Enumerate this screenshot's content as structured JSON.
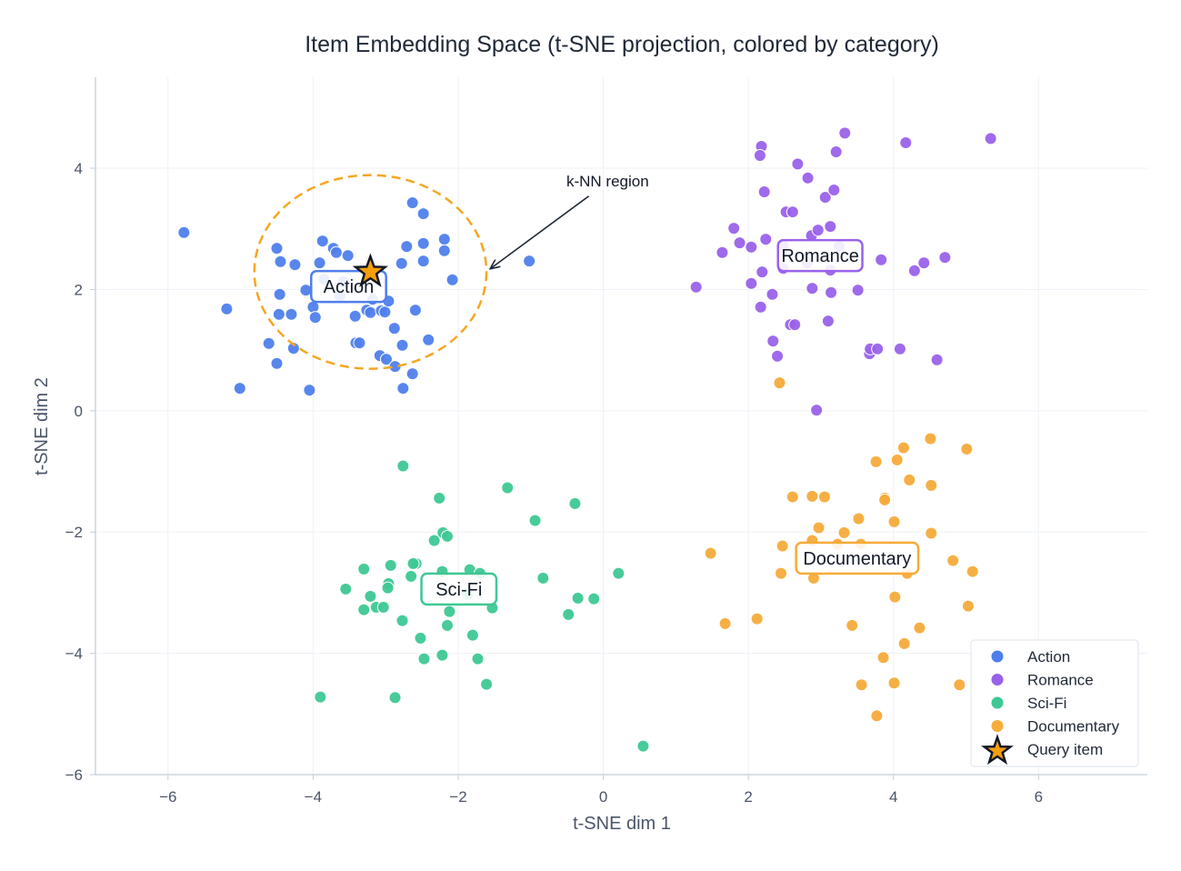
{
  "chart_data": {
    "type": "scatter",
    "title": "Item Embedding Space (t-SNE projection, colored by category)",
    "xlabel": "t-SNE dim 1",
    "ylabel": "t-SNE dim 2",
    "xlim": [
      -7,
      7.5
    ],
    "ylim": [
      -6,
      5.5
    ],
    "xticks": [
      -6,
      -4,
      -2,
      0,
      2,
      4,
      6
    ],
    "yticks": [
      -6,
      -4,
      -2,
      0,
      2,
      4
    ],
    "xtick_labels": [
      "−6",
      "−4",
      "−2",
      "0",
      "2",
      "4",
      "6"
    ],
    "ytick_labels": [
      "−6",
      "−4",
      "−2",
      "0",
      "2",
      "4"
    ],
    "grid": true,
    "legend_position": "bottom-right",
    "series": [
      {
        "name": "Action",
        "color": "#4f7fec",
        "label_text": "Action",
        "label_at": [
          -3.51,
          2.05
        ],
        "points": [
          [
            -5.78,
            2.94
          ],
          [
            -5.19,
            1.68
          ],
          [
            -5.01,
            0.37
          ],
          [
            -4.5,
            2.68
          ],
          [
            -4.45,
            2.46
          ],
          [
            -4.25,
            2.41
          ],
          [
            -4.46,
            1.92
          ],
          [
            -4.47,
            1.59
          ],
          [
            -4.3,
            1.59
          ],
          [
            -4.61,
            1.11
          ],
          [
            -4.27,
            1.03
          ],
          [
            -4.5,
            0.78
          ],
          [
            -4.05,
            0.34
          ],
          [
            -4.1,
            1.99
          ],
          [
            -4.0,
            1.71
          ],
          [
            -3.97,
            1.54
          ],
          [
            -3.91,
            2.44
          ],
          [
            -3.87,
            2.8
          ],
          [
            -3.72,
            2.68
          ],
          [
            -3.68,
            2.61
          ],
          [
            -3.52,
            2.56
          ],
          [
            -3.42,
            1.56
          ],
          [
            -3.41,
            1.12
          ],
          [
            -3.36,
            1.12
          ],
          [
            -3.26,
            1.66
          ],
          [
            -3.21,
            1.62
          ],
          [
            -3.06,
            1.65
          ],
          [
            -3.01,
            1.63
          ],
          [
            -2.96,
            1.81
          ],
          [
            -2.88,
            1.36
          ],
          [
            -3.08,
            0.91
          ],
          [
            -2.99,
            0.85
          ],
          [
            -2.87,
            0.73
          ],
          [
            -2.77,
            1.08
          ],
          [
            -2.76,
            0.37
          ],
          [
            -2.63,
            0.61
          ],
          [
            -2.78,
            2.43
          ],
          [
            -2.71,
            2.71
          ],
          [
            -2.63,
            3.43
          ],
          [
            -2.59,
            1.66
          ],
          [
            -2.48,
            3.25
          ],
          [
            -2.48,
            2.47
          ],
          [
            -2.48,
            2.76
          ],
          [
            -2.41,
            1.17
          ],
          [
            -2.19,
            2.83
          ],
          [
            -2.19,
            2.64
          ],
          [
            -2.08,
            2.16
          ],
          [
            -1.02,
            2.47
          ],
          [
            -3.85,
            2.17
          ],
          [
            -3.58,
            2.13
          ],
          [
            -3.63,
            1.89
          ],
          [
            -3.18,
            1.84
          ]
        ]
      },
      {
        "name": "Romance",
        "color": "#9a62ea",
        "label_text": "Romance",
        "label_at": [
          2.99,
          2.56
        ],
        "points": [
          [
            1.28,
            2.04
          ],
          [
            1.64,
            2.61
          ],
          [
            1.8,
            3.01
          ],
          [
            1.88,
            2.77
          ],
          [
            2.04,
            2.7
          ],
          [
            2.04,
            2.1
          ],
          [
            2.17,
            1.71
          ],
          [
            2.18,
            4.36
          ],
          [
            2.16,
            4.21
          ],
          [
            2.22,
            3.61
          ],
          [
            2.19,
            2.29
          ],
          [
            2.24,
            2.83
          ],
          [
            2.33,
            1.92
          ],
          [
            2.34,
            1.15
          ],
          [
            2.4,
            0.9
          ],
          [
            2.48,
            2.73
          ],
          [
            2.52,
            3.28
          ],
          [
            2.61,
            3.28
          ],
          [
            2.58,
            1.42
          ],
          [
            2.64,
            1.42
          ],
          [
            2.68,
            4.07
          ],
          [
            2.82,
            3.84
          ],
          [
            2.87,
            2.89
          ],
          [
            2.88,
            2.02
          ],
          [
            2.96,
            2.98
          ],
          [
            3.06,
            3.52
          ],
          [
            3.1,
            1.48
          ],
          [
            3.13,
            3.04
          ],
          [
            3.14,
            1.95
          ],
          [
            3.18,
            3.64
          ],
          [
            3.21,
            4.27
          ],
          [
            3.33,
            4.58
          ],
          [
            3.51,
            1.99
          ],
          [
            3.67,
            0.94
          ],
          [
            3.68,
            1.02
          ],
          [
            3.78,
            1.02
          ],
          [
            3.83,
            2.49
          ],
          [
            4.17,
            4.42
          ],
          [
            4.09,
            1.02
          ],
          [
            4.29,
            2.31
          ],
          [
            4.42,
            2.44
          ],
          [
            4.6,
            0.84
          ],
          [
            4.71,
            2.53
          ],
          [
            5.34,
            4.49
          ],
          [
            2.94,
            0.01
          ],
          [
            2.48,
            2.35
          ],
          [
            3.13,
            2.32
          ],
          [
            2.81,
            2.44
          ],
          [
            3.25,
            2.71
          ]
        ]
      },
      {
        "name": "Sci-Fi",
        "color": "#3ec893",
        "label_text": "Sci-Fi",
        "label_at": [
          -1.99,
          -2.94
        ],
        "points": [
          [
            -2.76,
            -0.91
          ],
          [
            -2.26,
            -1.44
          ],
          [
            -1.32,
            -1.27
          ],
          [
            -0.39,
            -1.53
          ],
          [
            -0.94,
            -1.81
          ],
          [
            -2.21,
            -2.01
          ],
          [
            -2.15,
            -2.07
          ],
          [
            -2.33,
            -2.14
          ],
          [
            -3.3,
            -2.61
          ],
          [
            -3.55,
            -2.94
          ],
          [
            -3.21,
            -3.06
          ],
          [
            -3.13,
            -3.24
          ],
          [
            -3.3,
            -3.28
          ],
          [
            -3.03,
            -3.24
          ],
          [
            -2.96,
            -2.85
          ],
          [
            -2.97,
            -2.92
          ],
          [
            -2.93,
            -2.55
          ],
          [
            -2.65,
            -2.73
          ],
          [
            -2.58,
            -2.52
          ],
          [
            -2.62,
            -2.52
          ],
          [
            -2.77,
            -3.46
          ],
          [
            -2.52,
            -3.75
          ],
          [
            -2.47,
            -4.09
          ],
          [
            -2.22,
            -4.03
          ],
          [
            -2.15,
            -3.54
          ],
          [
            -2.12,
            -3.31
          ],
          [
            -1.8,
            -3.7
          ],
          [
            -1.73,
            -4.09
          ],
          [
            -1.61,
            -4.51
          ],
          [
            -1.53,
            -3.25
          ],
          [
            -0.83,
            -2.76
          ],
          [
            -0.48,
            -3.36
          ],
          [
            -0.35,
            -3.09
          ],
          [
            -0.13,
            -3.1
          ],
          [
            0.21,
            -2.68
          ],
          [
            -3.9,
            -4.72
          ],
          [
            -2.87,
            -4.73
          ],
          [
            0.55,
            -5.53
          ],
          [
            -2.22,
            -2.65
          ],
          [
            -1.84,
            -2.62
          ],
          [
            -1.7,
            -2.68
          ],
          [
            -1.87,
            -3.03
          ]
        ]
      },
      {
        "name": "Documentary",
        "color": "#f6ab3a",
        "label_text": "Documentary",
        "label_at": [
          3.5,
          -2.43
        ],
        "points": [
          [
            2.43,
            0.46
          ],
          [
            4.51,
            -0.46
          ],
          [
            4.14,
            -0.61
          ],
          [
            5.01,
            -0.63
          ],
          [
            3.76,
            -0.84
          ],
          [
            4.05,
            -0.81
          ],
          [
            4.22,
            -1.14
          ],
          [
            4.52,
            -1.23
          ],
          [
            2.61,
            -1.42
          ],
          [
            2.88,
            -1.41
          ],
          [
            3.05,
            -1.42
          ],
          [
            3.88,
            -1.44
          ],
          [
            3.88,
            -1.47
          ],
          [
            3.52,
            -1.78
          ],
          [
            4.01,
            -1.83
          ],
          [
            2.97,
            -1.93
          ],
          [
            3.32,
            -2.01
          ],
          [
            4.52,
            -2.02
          ],
          [
            2.47,
            -2.23
          ],
          [
            2.88,
            -2.14
          ],
          [
            3.23,
            -2.2
          ],
          [
            3.55,
            -2.2
          ],
          [
            2.45,
            -2.68
          ],
          [
            2.9,
            -2.76
          ],
          [
            4.19,
            -2.68
          ],
          [
            1.48,
            -2.35
          ],
          [
            4.82,
            -2.47
          ],
          [
            5.09,
            -2.65
          ],
          [
            4.02,
            -3.07
          ],
          [
            5.03,
            -3.22
          ],
          [
            1.68,
            -3.51
          ],
          [
            2.12,
            -3.43
          ],
          [
            3.43,
            -3.54
          ],
          [
            4.36,
            -3.58
          ],
          [
            4.15,
            -3.84
          ],
          [
            3.86,
            -4.07
          ],
          [
            3.56,
            -4.52
          ],
          [
            4.01,
            -4.49
          ],
          [
            4.91,
            -4.52
          ],
          [
            3.77,
            -5.03
          ]
        ]
      }
    ],
    "query": {
      "name": "Query item",
      "point": [
        -3.21,
        2.29
      ],
      "color": "#f59e0b",
      "marker": "star"
    },
    "knn_region": {
      "center": [
        -3.21,
        2.29
      ],
      "radius": 1.6,
      "color": "#f5a623",
      "style": "dashed"
    },
    "annotation": {
      "text": "k-NN region",
      "text_at": [
        0.06,
        3.79
      ],
      "arrow_from": [
        -0.2,
        3.54
      ],
      "arrow_to": [
        -1.55,
        2.35
      ]
    },
    "legend": [
      "Action",
      "Romance",
      "Sci-Fi",
      "Documentary",
      "Query item"
    ]
  }
}
